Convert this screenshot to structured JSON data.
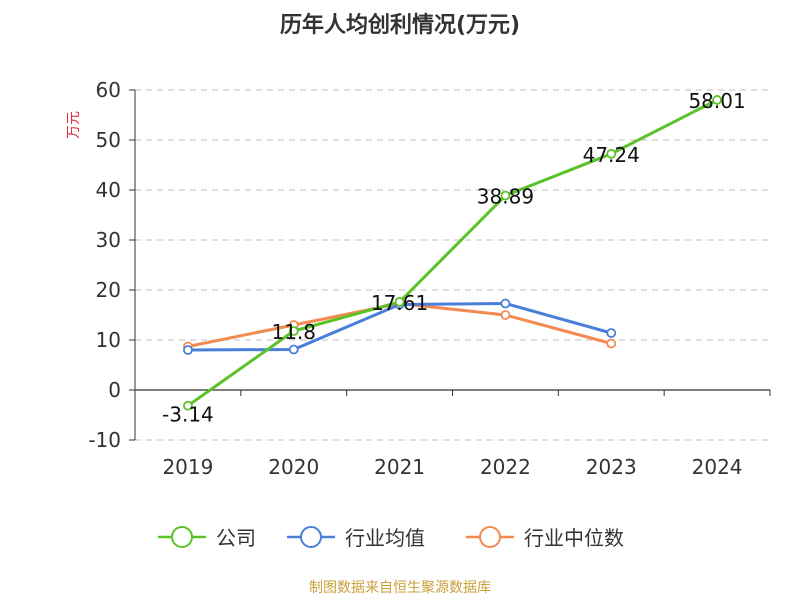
{
  "chart_data": {
    "type": "line",
    "title": "历年人均创利情况(万元)",
    "ylabel": "万元",
    "xlabel": "",
    "categories": [
      "2019",
      "2020",
      "2021",
      "2022",
      "2023",
      "2024"
    ],
    "ylim": [
      -10,
      60
    ],
    "yticks": [
      -10,
      0,
      10,
      20,
      30,
      40,
      50,
      60
    ],
    "grid": true,
    "legend_position": "bottom",
    "series": [
      {
        "name": "公司",
        "color": "#5bc228",
        "values": [
          -3.14,
          11.8,
          17.61,
          38.89,
          47.24,
          58.01
        ],
        "labels": [
          "-3.14",
          "11.8",
          "17.61",
          "38.89",
          "47.24",
          "58.01"
        ]
      },
      {
        "name": "行业均值",
        "color": "#4a7fd9",
        "values": [
          8.0,
          8.1,
          17.1,
          17.3,
          11.4,
          null
        ]
      },
      {
        "name": "行业中位数",
        "color": "#f28a52",
        "values": [
          8.7,
          13.0,
          17.3,
          15.0,
          9.3,
          null
        ]
      }
    ],
    "source": "制图数据来自恒生聚源数据库"
  }
}
